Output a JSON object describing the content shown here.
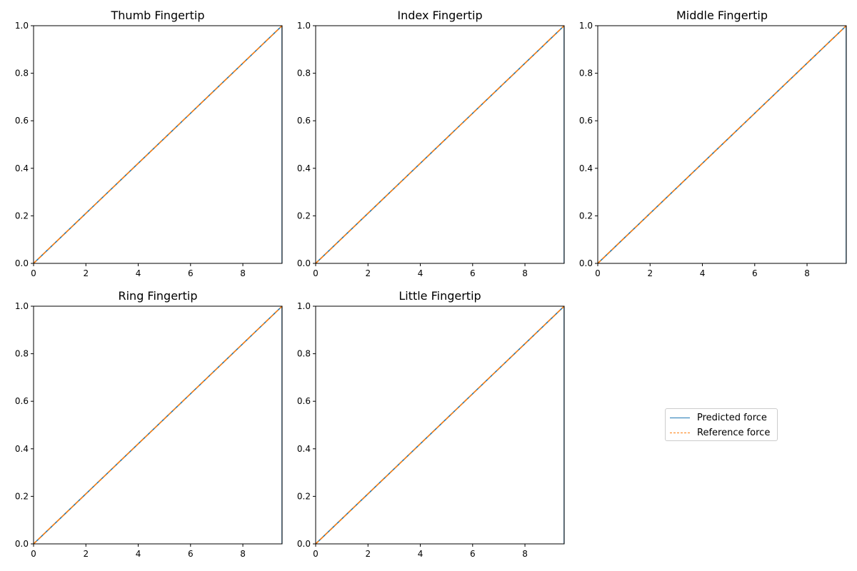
{
  "chart_data": [
    {
      "type": "line",
      "title": "Thumb Fingertip",
      "xlabel": "",
      "ylabel": "",
      "xlim": [
        0,
        9.5
      ],
      "ylim": [
        0,
        1.0
      ],
      "xticks": [
        "0",
        "2",
        "4",
        "6",
        "8"
      ],
      "yticks": [
        "0.0",
        "0.2",
        "0.4",
        "0.6",
        "0.8",
        "1.0"
      ],
      "grid": false,
      "series": [
        {
          "name": "Predicted force",
          "x": [
            0,
            9.5,
            9.5
          ],
          "y": [
            0,
            1.0,
            0.0
          ]
        },
        {
          "name": "Reference force",
          "x": [
            0,
            9.5
          ],
          "y": [
            0,
            1.0
          ]
        }
      ]
    },
    {
      "type": "line",
      "title": "Index Fingertip",
      "xlabel": "",
      "ylabel": "",
      "xlim": [
        0,
        9.5
      ],
      "ylim": [
        0,
        1.0
      ],
      "xticks": [
        "0",
        "2",
        "4",
        "6",
        "8"
      ],
      "yticks": [
        "0.0",
        "0.2",
        "0.4",
        "0.6",
        "0.8",
        "1.0"
      ],
      "grid": false,
      "series": [
        {
          "name": "Predicted force",
          "x": [
            0,
            9.5,
            9.5
          ],
          "y": [
            0,
            1.0,
            0.0
          ]
        },
        {
          "name": "Reference force",
          "x": [
            0,
            9.5
          ],
          "y": [
            0,
            1.0
          ]
        }
      ]
    },
    {
      "type": "line",
      "title": "Middle Fingertip",
      "xlabel": "",
      "ylabel": "",
      "xlim": [
        0,
        9.5
      ],
      "ylim": [
        0,
        1.0
      ],
      "xticks": [
        "0",
        "2",
        "4",
        "6",
        "8"
      ],
      "yticks": [
        "0.0",
        "0.2",
        "0.4",
        "0.6",
        "0.8",
        "1.0"
      ],
      "grid": false,
      "series": [
        {
          "name": "Predicted force",
          "x": [
            0,
            9.5,
            9.5
          ],
          "y": [
            0,
            1.0,
            0.0
          ]
        },
        {
          "name": "Reference force",
          "x": [
            0,
            9.5
          ],
          "y": [
            0,
            1.0
          ]
        }
      ]
    },
    {
      "type": "line",
      "title": "Ring Fingertip",
      "xlabel": "",
      "ylabel": "",
      "xlim": [
        0,
        9.5
      ],
      "ylim": [
        0,
        1.0
      ],
      "xticks": [
        "0",
        "2",
        "4",
        "6",
        "8"
      ],
      "yticks": [
        "0.0",
        "0.2",
        "0.4",
        "0.6",
        "0.8",
        "1.0"
      ],
      "grid": false,
      "series": [
        {
          "name": "Predicted force",
          "x": [
            0,
            9.5,
            9.5
          ],
          "y": [
            0,
            1.0,
            0.0
          ]
        },
        {
          "name": "Reference force",
          "x": [
            0,
            9.5
          ],
          "y": [
            0,
            1.0
          ]
        }
      ]
    },
    {
      "type": "line",
      "title": "Little Fingertip",
      "xlabel": "",
      "ylabel": "",
      "xlim": [
        0,
        9.5
      ],
      "ylim": [
        0,
        1.0
      ],
      "xticks": [
        "0",
        "2",
        "4",
        "6",
        "8"
      ],
      "yticks": [
        "0.0",
        "0.2",
        "0.4",
        "0.6",
        "0.8",
        "1.0"
      ],
      "grid": false,
      "series": [
        {
          "name": "Predicted force",
          "x": [
            0,
            9.5,
            9.5
          ],
          "y": [
            0,
            1.0,
            0.0
          ]
        },
        {
          "name": "Reference force",
          "x": [
            0,
            9.5
          ],
          "y": [
            0,
            1.0
          ]
        }
      ]
    }
  ],
  "legend": {
    "placement": "empty sixth panel, center",
    "entries": [
      {
        "label": "Predicted force",
        "color": "#1f77b4",
        "style": "solid"
      },
      {
        "label": "Reference force",
        "color": "#ff7f0e",
        "style": "dashed"
      }
    ]
  },
  "colors": {
    "predicted": "#1f77b4",
    "reference": "#ff7f0e",
    "axes": "#000000"
  }
}
